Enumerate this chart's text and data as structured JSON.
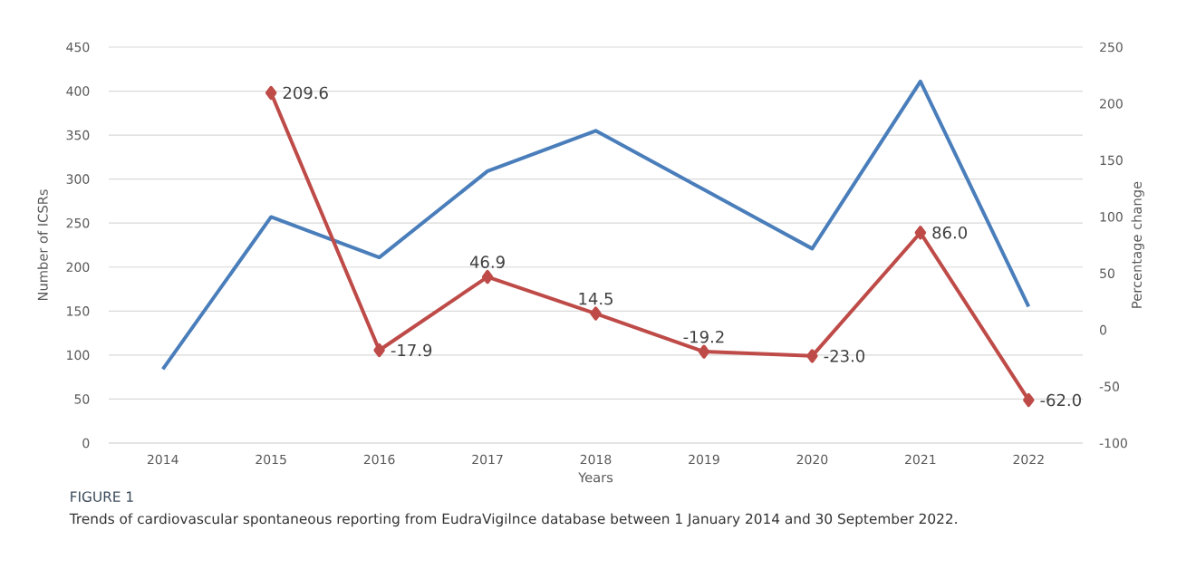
{
  "chart_data": {
    "type": "line",
    "title": "FIGURE 1",
    "annotations": [
      "Trends of cardiovascular spontaneous reporting from EudraVigilnce database between 1 January 2014 and 30 September 2022."
    ],
    "categories": [
      "2014",
      "2015",
      "2016",
      "2017",
      "2018",
      "2019",
      "2020",
      "2021",
      "2022"
    ],
    "xlabel": "Years",
    "ylabel": "Number of ICSRs",
    "y2label": "Percentage change",
    "ylim": [
      0,
      450
    ],
    "yticks": [
      0,
      50,
      100,
      150,
      200,
      250,
      300,
      350,
      400,
      450
    ],
    "y2lim": [
      -100,
      250
    ],
    "y2ticks": [
      -100,
      -50,
      0,
      50,
      100,
      150,
      200,
      250
    ],
    "grid": "y",
    "line_style": "solid",
    "series": [
      {
        "color": "#4a7ebb",
        "values": [
          84,
          257,
          211,
          309,
          355,
          288,
          221,
          411,
          155
        ],
        "marker": "none"
      },
      {
        "color": "#be4b48",
        "axis": "y2",
        "marker": "diamond",
        "values": [
          null,
          209.6,
          -17.9,
          46.9,
          14.5,
          -19.2,
          -23.0,
          86.0,
          -62.0
        ],
        "value_labels": [
          null,
          "209.6",
          "-17.9",
          "46.9",
          "14.5",
          "-19.2",
          "-23.0",
          "86.0",
          "-62.0"
        ]
      }
    ]
  }
}
